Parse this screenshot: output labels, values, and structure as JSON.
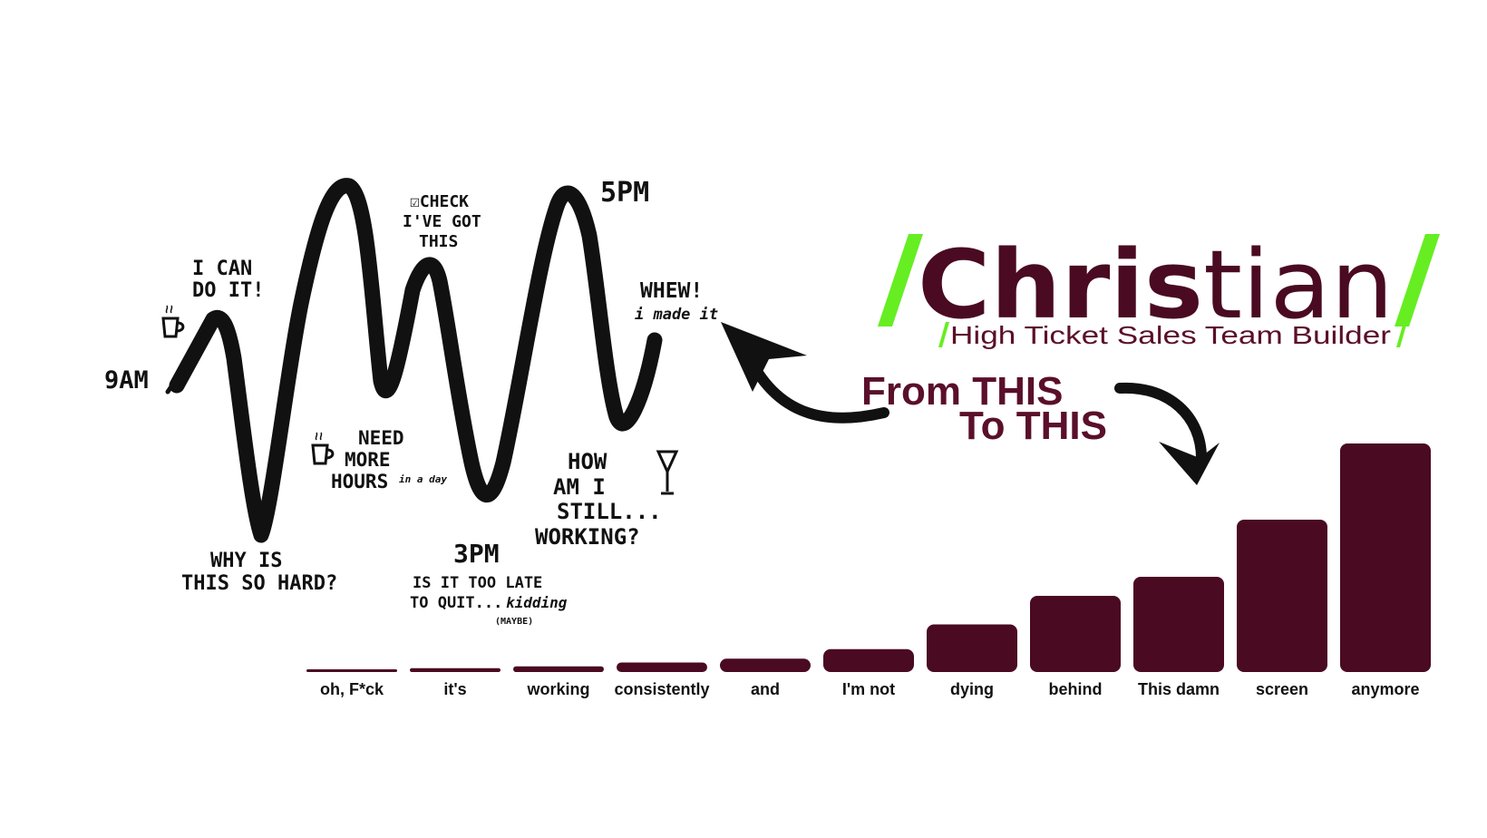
{
  "doodle": {
    "labels": {
      "nine_am": "9AM",
      "i_can_1": "I CAN",
      "i_can_2": "DO IT!",
      "why_1": "WHY IS",
      "why_2": "THIS SO HARD?",
      "check_1": "☑CHECK",
      "check_2": "I'VE GOT",
      "check_3": "THIS",
      "need_1": "NEED",
      "need_2": "MORE",
      "need_3": "HOURS",
      "need_4": "in a day",
      "three_pm": "3PM",
      "late_1": "IS IT TOO LATE",
      "late_2": "TO QUIT...",
      "late_3": "kidding",
      "late_4": "(MAYBE)",
      "five_pm": "5PM",
      "whew_1": "WHEW!",
      "whew_2": "i made it",
      "how_1": "HOW",
      "how_2": "AM I",
      "how_3": "STILL...",
      "how_4": "WORKING?"
    }
  },
  "logo": {
    "name_bold": "Chris",
    "name_light": "tian",
    "tagline": "High Ticket Sales Team Builder",
    "accent_color": "#66ee22",
    "brand_color": "#4a0a22"
  },
  "callout": {
    "line1": "From THIS",
    "line2": "To THIS",
    "color": "#5a0f2a"
  },
  "chart_data": {
    "type": "bar",
    "categories": [
      "oh, F*ck",
      "it's",
      "working",
      "consistently",
      "and",
      "I'm not",
      "dying",
      "behind",
      "This damn",
      "screen",
      "anymore"
    ],
    "values": [
      1,
      2,
      3,
      5,
      7,
      12,
      25,
      40,
      50,
      80,
      120
    ],
    "ylim": [
      0,
      120
    ],
    "bar_color": "#4a0a22",
    "grid": false,
    "legend": "none"
  }
}
